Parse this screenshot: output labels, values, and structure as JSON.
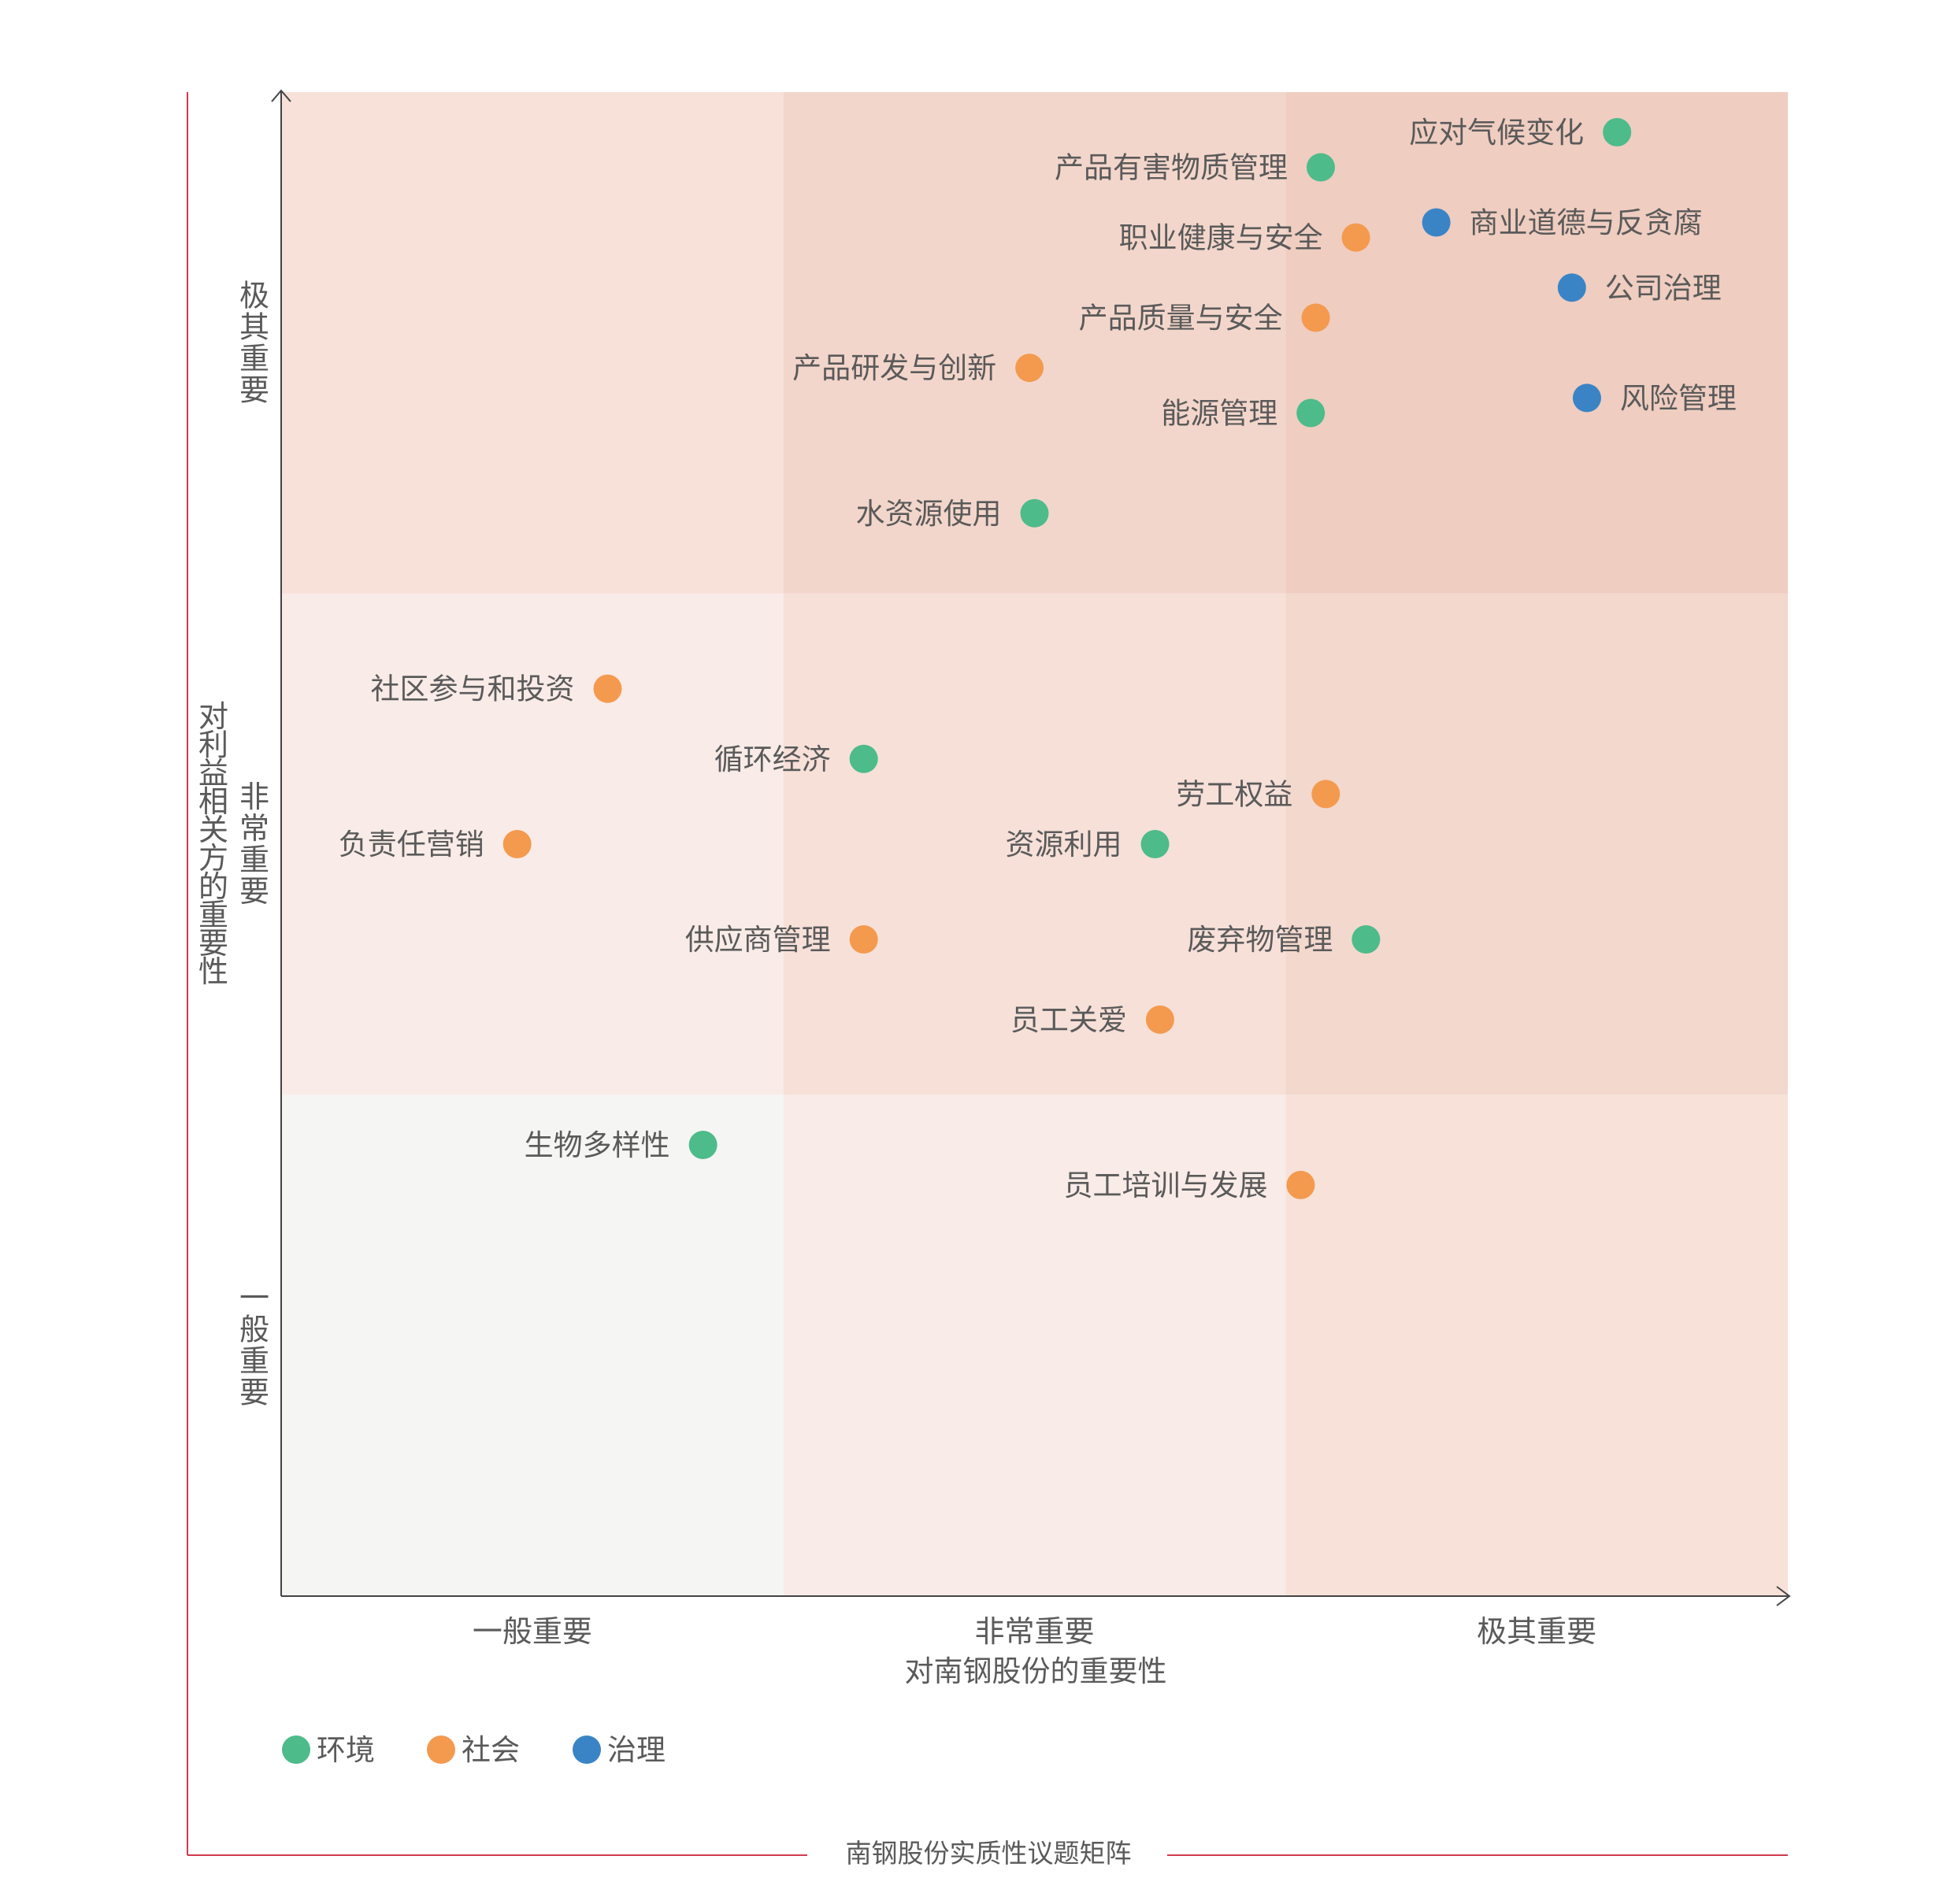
{
  "caption": "南钢股份实质性议题矩阵",
  "chart_data": {
    "type": "scatter",
    "title": "",
    "xlabel": "对南钢股份的重要性",
    "ylabel": "对利益相关方的重要性",
    "xlim": [
      0,
      3
    ],
    "ylim": [
      0,
      3
    ],
    "x_tick_labels": [
      "一般重要",
      "非常重要",
      "极其重要"
    ],
    "y_tick_labels": [
      "一般重要",
      "非常重要",
      "极其重要"
    ],
    "grid": false,
    "legend_position": "bottom-left",
    "categories": [
      {
        "name": "环境",
        "color": "#4dbb8a"
      },
      {
        "name": "社会",
        "color": "#f39a4f"
      },
      {
        "name": "治理",
        "color": "#3a84c6"
      }
    ],
    "points": [
      {
        "label": "应对气候变化",
        "category": "环境",
        "x": 2.66,
        "y": 2.92,
        "label_side": "left"
      },
      {
        "label": "产品有害物质管理",
        "category": "环境",
        "x": 2.07,
        "y": 2.85,
        "label_side": "left"
      },
      {
        "label": "职业健康与安全",
        "category": "社会",
        "x": 2.14,
        "y": 2.71,
        "label_side": "left"
      },
      {
        "label": "商业道德与反贪腐",
        "category": "治理",
        "x": 2.3,
        "y": 2.74,
        "label_side": "right"
      },
      {
        "label": "公司治理",
        "category": "治理",
        "x": 2.57,
        "y": 2.61,
        "label_side": "right"
      },
      {
        "label": "产品质量与安全",
        "category": "社会",
        "x": 2.06,
        "y": 2.55,
        "label_side": "left"
      },
      {
        "label": "产品研发与创新",
        "category": "社会",
        "x": 1.49,
        "y": 2.45,
        "label_side": "left"
      },
      {
        "label": "能源管理",
        "category": "环境",
        "x": 2.05,
        "y": 2.36,
        "label_side": "left"
      },
      {
        "label": "风险管理",
        "category": "治理",
        "x": 2.6,
        "y": 2.39,
        "label_side": "right"
      },
      {
        "label": "水资源使用",
        "category": "环境",
        "x": 1.5,
        "y": 2.16,
        "label_side": "left"
      },
      {
        "label": "社区参与和投资",
        "category": "社会",
        "x": 0.65,
        "y": 1.81,
        "label_side": "left"
      },
      {
        "label": "循环经济",
        "category": "环境",
        "x": 1.16,
        "y": 1.67,
        "label_side": "left"
      },
      {
        "label": "劳工权益",
        "category": "社会",
        "x": 2.08,
        "y": 1.6,
        "label_side": "left"
      },
      {
        "label": "负责任营销",
        "category": "社会",
        "x": 0.47,
        "y": 1.5,
        "label_side": "left"
      },
      {
        "label": "资源利用",
        "category": "环境",
        "x": 1.74,
        "y": 1.5,
        "label_side": "left"
      },
      {
        "label": "供应商管理",
        "category": "社会",
        "x": 1.16,
        "y": 1.31,
        "label_side": "left"
      },
      {
        "label": "废弃物管理",
        "category": "环境",
        "x": 2.16,
        "y": 1.31,
        "label_side": "left"
      },
      {
        "label": "员工关爱",
        "category": "社会",
        "x": 1.75,
        "y": 1.15,
        "label_side": "left"
      },
      {
        "label": "生物多样性",
        "category": "环境",
        "x": 0.84,
        "y": 0.9,
        "label_side": "left"
      },
      {
        "label": "员工培训与发展",
        "category": "社会",
        "x": 2.03,
        "y": 0.82,
        "label_side": "left"
      }
    ],
    "zone_colors": [
      [
        "#f5f5f4",
        "#f9ebe7",
        "#f7e1d8"
      ],
      [
        "#f9ebe7",
        "#f6e0d8",
        "#f3d8cd"
      ],
      [
        "#f7e1d8",
        "#f3d6cb",
        "#efcdc0"
      ]
    ],
    "frame_color": "#d23a4e"
  }
}
